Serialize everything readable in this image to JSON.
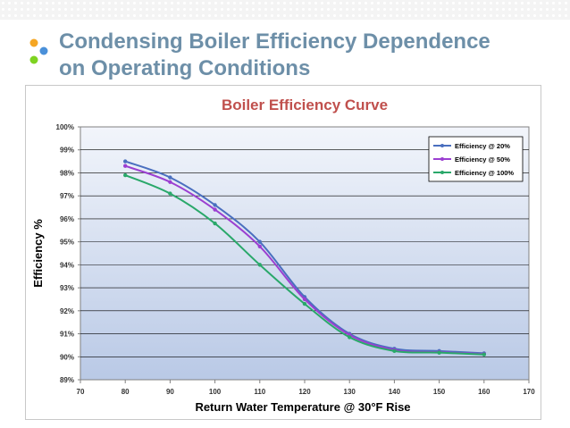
{
  "slide": {
    "title_line1": "Condensing Boiler Efficiency Dependence",
    "title_line2": "on Operating Conditions"
  },
  "colors": {
    "title": "#6d8fa8",
    "chart_title": "#c0504d",
    "dot_orange": "#f5a623",
    "dot_blue": "#4a90d9",
    "dot_green": "#7ed321",
    "plot_gradient_top": "#f2f5fb",
    "plot_gradient_bottom": "#b9c9e6"
  },
  "chart_data": {
    "type": "line",
    "title": "Boiler Efficiency Curve",
    "xlabel": "Return Water Temperature @ 30°F Rise",
    "ylabel": "Efficiency %",
    "xlim": [
      70,
      170
    ],
    "ylim": [
      89,
      100
    ],
    "xticks": [
      "70",
      "80",
      "90",
      "100",
      "110",
      "120",
      "130",
      "140",
      "150",
      "160",
      "170"
    ],
    "yticks": [
      "89%",
      "90%",
      "91%",
      "92%",
      "93%",
      "94%",
      "95%",
      "96%",
      "97%",
      "98%",
      "99%",
      "100%"
    ],
    "grid": true,
    "legend_position": "top-right",
    "series": [
      {
        "name": "Efficiency @ 20%",
        "color": "#4a6fbf",
        "points": [
          [
            80,
            98.5
          ],
          [
            90,
            97.8
          ],
          [
            100,
            96.6
          ],
          [
            110,
            95.0
          ],
          [
            120,
            92.6
          ],
          [
            130,
            91.0
          ],
          [
            140,
            90.35
          ],
          [
            150,
            90.25
          ],
          [
            160,
            90.15
          ]
        ]
      },
      {
        "name": "Efficiency @ 50%",
        "color": "#9b3fd1",
        "points": [
          [
            80,
            98.3
          ],
          [
            90,
            97.6
          ],
          [
            100,
            96.4
          ],
          [
            110,
            94.8
          ],
          [
            120,
            92.5
          ],
          [
            130,
            90.95
          ],
          [
            140,
            90.3
          ],
          [
            150,
            90.2
          ],
          [
            160,
            90.12
          ]
        ]
      },
      {
        "name": "Efficiency @ 100%",
        "color": "#2aa86a",
        "points": [
          [
            80,
            97.9
          ],
          [
            90,
            97.1
          ],
          [
            100,
            95.8
          ],
          [
            110,
            94.0
          ],
          [
            120,
            92.3
          ],
          [
            130,
            90.85
          ],
          [
            140,
            90.25
          ],
          [
            150,
            90.18
          ],
          [
            160,
            90.1
          ]
        ]
      }
    ]
  }
}
